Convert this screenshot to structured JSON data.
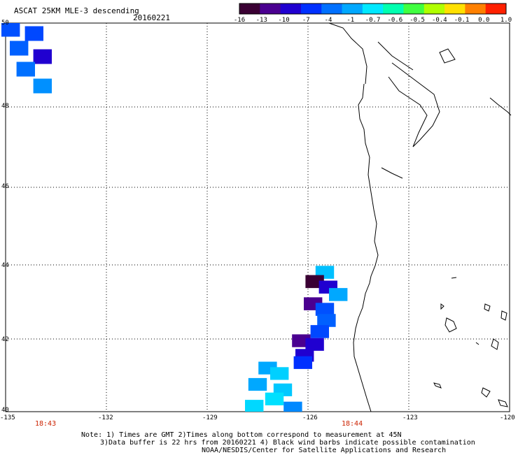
{
  "header": {
    "title": "ASCAT 25KM MLE-3 descending",
    "date": "20160221"
  },
  "colorbar": {
    "labels": [
      "-16",
      "-13",
      "-10",
      "-7",
      "-4",
      "-1",
      "-0.7",
      "-0.6",
      "-0.5",
      "-0.4",
      "-0.1",
      "0.0",
      "1.0"
    ],
    "colors": [
      "#3a0033",
      "#4a0090",
      "#2000d0",
      "#0030ff",
      "#0070ff",
      "#00a8ff",
      "#00e8ff",
      "#00ffb0",
      "#40ff40",
      "#b0ff00",
      "#ffe000",
      "#ff8000",
      "#ff2000"
    ]
  },
  "axes": {
    "lat_labels": [
      "50",
      "48",
      "46",
      "44",
      "42",
      "40"
    ],
    "lon_labels": [
      "-135",
      "-132",
      "-129",
      "-126",
      "-123",
      "-120"
    ]
  },
  "times": [
    "18:43",
    "18:44"
  ],
  "notes": [
    "Note: 1) Times are GMT 2)Times along bottom correspond to measurement at 45N",
    "3)Data buffer is 22 hrs from 20160221 4) Black wind barbs indicate possible contamination",
    "NOAA/NESDIS/Center for Satellite Applications and Research"
  ],
  "swaths": [
    {
      "lat": 49.85,
      "lon": -134.85,
      "color": "#0050ff"
    },
    {
      "lat": 49.75,
      "lon": -134.15,
      "color": "#0048ff"
    },
    {
      "lat": 49.4,
      "lon": -134.6,
      "color": "#0060ff"
    },
    {
      "lat": 49.2,
      "lon": -133.9,
      "color": "#2000d0"
    },
    {
      "lat": 48.9,
      "lon": -134.4,
      "color": "#0070ff"
    },
    {
      "lat": 48.5,
      "lon": -133.9,
      "color": "#0090ff"
    },
    {
      "lat": 43.8,
      "lon": -125.5,
      "color": "#00c0ff"
    },
    {
      "lat": 43.55,
      "lon": -125.8,
      "color": "#3a0033"
    },
    {
      "lat": 43.4,
      "lon": -125.4,
      "color": "#2000d0"
    },
    {
      "lat": 43.2,
      "lon": -125.1,
      "color": "#00a8ff"
    },
    {
      "lat": 42.95,
      "lon": -125.85,
      "color": "#4a0090"
    },
    {
      "lat": 42.8,
      "lon": -125.5,
      "color": "#0050ff"
    },
    {
      "lat": 42.5,
      "lon": -125.45,
      "color": "#0060ff"
    },
    {
      "lat": 42.2,
      "lon": -125.65,
      "color": "#0048ff"
    },
    {
      "lat": 41.95,
      "lon": -126.2,
      "color": "#4a0090"
    },
    {
      "lat": 41.85,
      "lon": -125.8,
      "color": "#2000d0"
    },
    {
      "lat": 41.55,
      "lon": -126.1,
      "color": "#2000d0"
    },
    {
      "lat": 41.35,
      "lon": -126.15,
      "color": "#0030ff"
    },
    {
      "lat": 41.2,
      "lon": -127.2,
      "color": "#00a8ff"
    },
    {
      "lat": 41.05,
      "lon": -126.85,
      "color": "#00d0ff"
    },
    {
      "lat": 40.75,
      "lon": -127.5,
      "color": "#00a8ff"
    },
    {
      "lat": 40.6,
      "lon": -126.75,
      "color": "#00c8ff"
    },
    {
      "lat": 40.35,
      "lon": -127.0,
      "color": "#00e0ff"
    },
    {
      "lat": 40.15,
      "lon": -127.6,
      "color": "#00d8ff"
    },
    {
      "lat": 40.1,
      "lon": -126.45,
      "color": "#0088ff"
    }
  ]
}
